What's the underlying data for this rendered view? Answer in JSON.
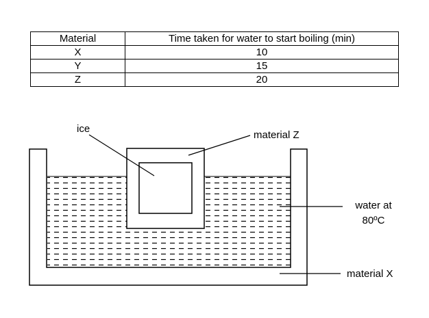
{
  "table": {
    "headers": [
      "Material",
      "Time taken for water to start boiling (min)"
    ],
    "rows": [
      [
        "X",
        "10"
      ],
      [
        "Y",
        "15"
      ],
      [
        "Z",
        "20"
      ]
    ]
  },
  "diagram": {
    "label_ice": "ice",
    "label_material_z": "material Z",
    "label_water_line1": "water at",
    "label_water_line2": "80ºC",
    "label_material_x": "material X"
  }
}
